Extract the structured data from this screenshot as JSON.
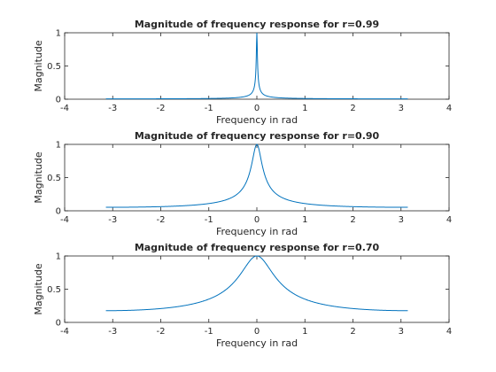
{
  "chart_data": [
    {
      "type": "line",
      "title": "Magnitude of frequency response for r=0.99",
      "xlabel": "Frequency in rad",
      "ylabel": "Magnitude",
      "r": 0.99,
      "xlim": [
        -4,
        4
      ],
      "ylim": [
        0,
        1
      ],
      "x_range": [
        -3.1416,
        3.1416
      ],
      "xticks": [
        -4,
        -3,
        -2,
        -1,
        0,
        1,
        2,
        3,
        4
      ],
      "yticks": [
        0,
        0.5,
        1
      ],
      "line_color": "#0072BD",
      "grid": false
    },
    {
      "type": "line",
      "title": "Magnitude of frequency response for r=0.90",
      "xlabel": "Frequency in rad",
      "ylabel": "Magnitude",
      "r": 0.9,
      "xlim": [
        -4,
        4
      ],
      "ylim": [
        0,
        1
      ],
      "x_range": [
        -3.1416,
        3.1416
      ],
      "xticks": [
        -4,
        -3,
        -2,
        -1,
        0,
        1,
        2,
        3,
        4
      ],
      "yticks": [
        0,
        0.5,
        1
      ],
      "line_color": "#0072BD",
      "grid": false
    },
    {
      "type": "line",
      "title": "Magnitude of frequency response for r=0.70",
      "xlabel": "Frequency in rad",
      "ylabel": "Magnitude",
      "r": 0.7,
      "xlim": [
        -4,
        4
      ],
      "ylim": [
        0,
        1
      ],
      "x_range": [
        -3.1416,
        3.1416
      ],
      "xticks": [
        -4,
        -3,
        -2,
        -1,
        0,
        1,
        2,
        3,
        4
      ],
      "yticks": [
        0,
        0.5,
        1
      ],
      "line_color": "#0072BD",
      "grid": false
    }
  ]
}
